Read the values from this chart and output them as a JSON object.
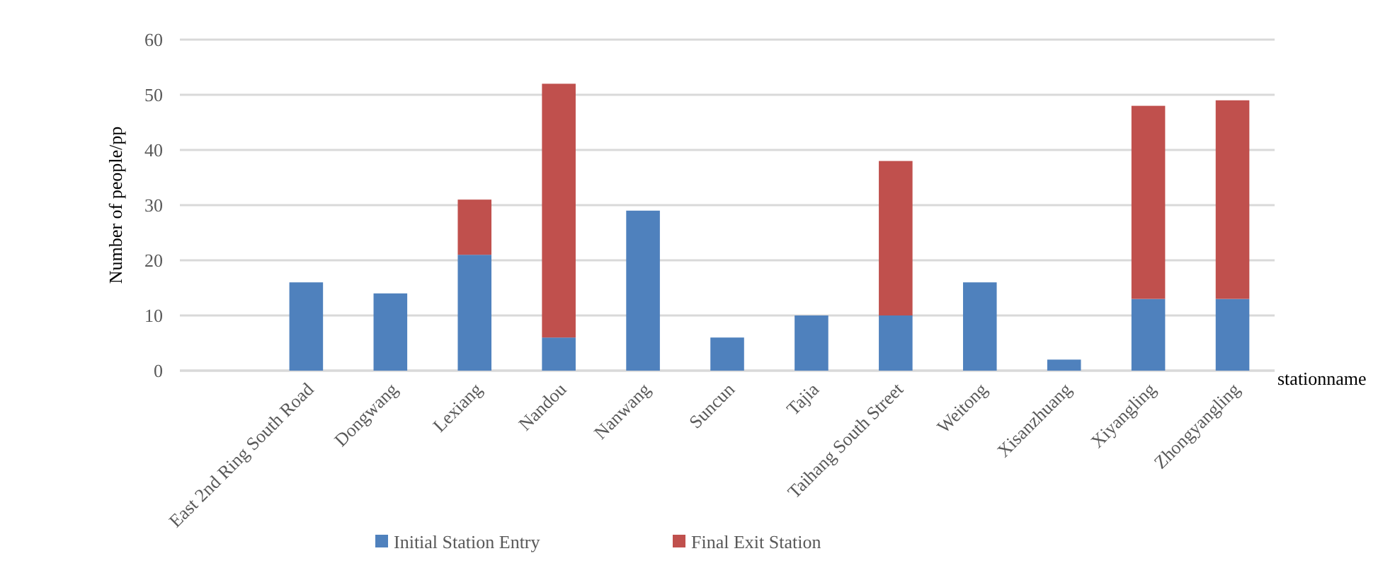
{
  "chart_data": {
    "type": "bar",
    "stacked": true,
    "ylabel": "Number of people/pp",
    "xlabel": "stationname",
    "categories": [
      null,
      "East 2nd Ring South Road",
      "Dongwang",
      "Lexiang",
      "Nandou",
      "Nanwang",
      "Suncun",
      "Tajia",
      "Taihang South Street",
      "Weitong",
      "Xisanzhuang",
      "Xiyangling",
      "Zhongyangling"
    ],
    "series": [
      {
        "name": "Initial Station Entry",
        "color": "#4f81bd",
        "values": [
          null,
          16,
          14,
          21,
          6,
          29,
          6,
          10,
          10,
          16,
          2,
          13,
          13
        ]
      },
      {
        "name": "Final Exit Station",
        "color": "#c0504d",
        "values": [
          null,
          0,
          0,
          10,
          46,
          0,
          0,
          0,
          28,
          0,
          0,
          35,
          36
        ]
      }
    ],
    "ylim": [
      0,
      60
    ],
    "yticks": [
      0,
      10,
      20,
      30,
      40,
      50,
      60
    ],
    "grid": "y",
    "legend": "bottom"
  }
}
